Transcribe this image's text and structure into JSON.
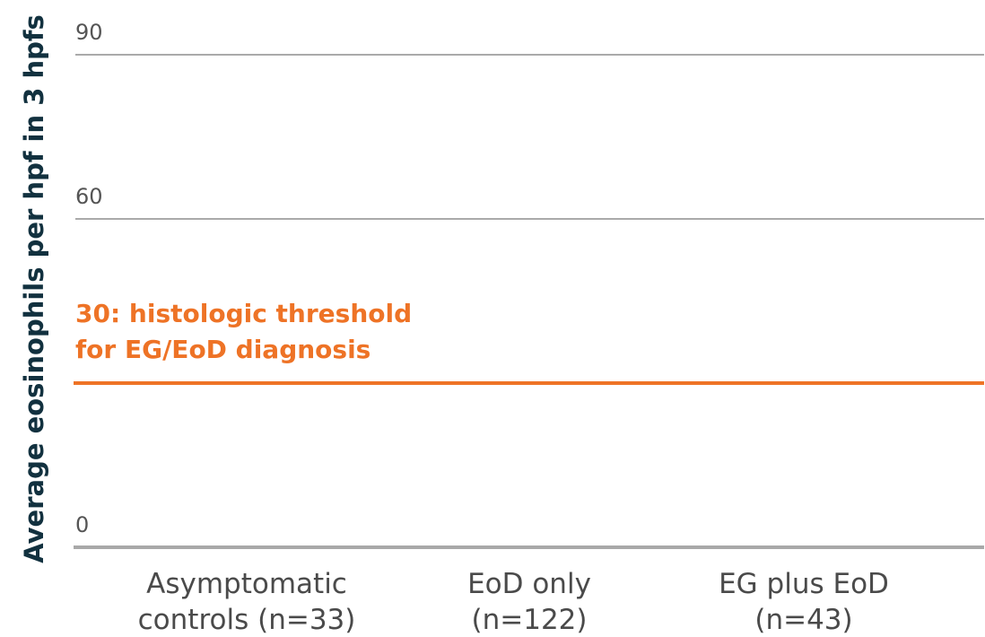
{
  "chart_data": {
    "type": "bar",
    "ylabel": "Average eosinophils per hpf in 3 hpfs",
    "ylim": [
      0,
      90
    ],
    "yticks": [
      "0",
      "60",
      "90"
    ],
    "categories": [
      {
        "line1": "Asymptomatic",
        "line2": "controls (n=33)"
      },
      {
        "line1": "EoD only",
        "line2": "(n=122)"
      },
      {
        "line1": "EG plus EoD",
        "line2": "(n=43)"
      }
    ],
    "reference_line": {
      "value": 30,
      "label_line1": "30: histologic threshold",
      "label_line2": "for EG/EoD diagnosis",
      "color": "#ee7326"
    },
    "colors": {
      "grid": "#aaaaaa",
      "axis": "#a9a9a9",
      "title": "#12313f"
    }
  }
}
